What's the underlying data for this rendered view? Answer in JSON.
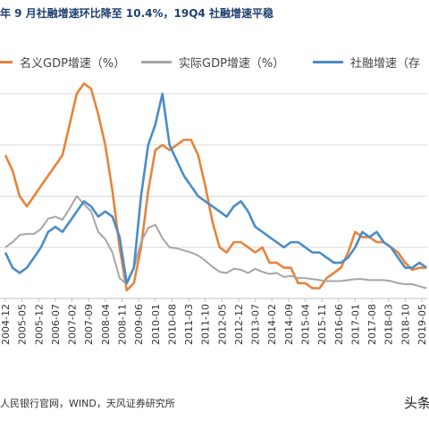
{
  "header": {
    "title": "年 9 月社融增速环比降至 10.4%，19Q4 社融增速平稳"
  },
  "footer": {
    "source": "人民银行官网，WIND，天风证券研究所",
    "watermark": "头条"
  },
  "colors": {
    "nominal_gdp": "#e8833a",
    "real_gdp": "#a6a6a6",
    "social_financing": "#4a8cc7"
  },
  "chart_data": {
    "type": "line",
    "title": "年 9 月社融增速环比降至 10.4%，19Q4 社融增速平稳",
    "xlabel": "",
    "ylabel": "",
    "x_ticks": [
      "2004-12",
      "2005-05",
      "2005-12",
      "2006-07",
      "2007-02",
      "2007-09",
      "2008-04",
      "2008-11",
      "2009-06",
      "2010-01",
      "2010-08",
      "2011-03",
      "2011-10",
      "2012-05",
      "2012-12",
      "2013-07",
      "2014-02",
      "2014-09",
      "2015-04",
      "2015-11",
      "2016-06",
      "2017-01",
      "2017-08",
      "2018-03",
      "2018-10",
      "2019-05"
    ],
    "ylim": [
      5,
      27
    ],
    "grid": true,
    "legend_position": "top",
    "series": [
      {
        "name": "名义GDP增速（%）",
        "points": [
          [
            "2004-12",
            19
          ],
          [
            "2005-03",
            17.5
          ],
          [
            "2005-06",
            15
          ],
          [
            "2005-09",
            14
          ],
          [
            "2005-12",
            15
          ],
          [
            "2006-03",
            16
          ],
          [
            "2006-06",
            17
          ],
          [
            "2006-09",
            18
          ],
          [
            "2006-12",
            19
          ],
          [
            "2007-03",
            22
          ],
          [
            "2007-06",
            25
          ],
          [
            "2007-09",
            26
          ],
          [
            "2007-12",
            25.5
          ],
          [
            "2008-03",
            23
          ],
          [
            "2008-06",
            20
          ],
          [
            "2008-09",
            15.5
          ],
          [
            "2008-12",
            10
          ],
          [
            "2009-03",
            5.8
          ],
          [
            "2009-06",
            6.5
          ],
          [
            "2009-09",
            10
          ],
          [
            "2009-12",
            15.5
          ],
          [
            "2010-03",
            19.5
          ],
          [
            "2010-06",
            20
          ],
          [
            "2010-09",
            19.5
          ],
          [
            "2010-12",
            20
          ],
          [
            "2011-03",
            20.5
          ],
          [
            "2011-06",
            20.5
          ],
          [
            "2011-09",
            19
          ],
          [
            "2011-12",
            16
          ],
          [
            "2012-03",
            12.5
          ],
          [
            "2012-06",
            10
          ],
          [
            "2012-09",
            9.5
          ],
          [
            "2012-12",
            10.5
          ],
          [
            "2013-03",
            10.5
          ],
          [
            "2013-06",
            10
          ],
          [
            "2013-09",
            9.5
          ],
          [
            "2013-12",
            10
          ],
          [
            "2014-03",
            8.5
          ],
          [
            "2014-06",
            8.5
          ],
          [
            "2014-09",
            8
          ],
          [
            "2014-12",
            8
          ],
          [
            "2015-03",
            6.5
          ],
          [
            "2015-06",
            6.5
          ],
          [
            "2015-09",
            6
          ],
          [
            "2015-12",
            6
          ],
          [
            "2016-03",
            7
          ],
          [
            "2016-06",
            7.5
          ],
          [
            "2016-09",
            8
          ],
          [
            "2016-12",
            9.5
          ],
          [
            "2017-03",
            11.5
          ],
          [
            "2017-06",
            11
          ],
          [
            "2017-09",
            11
          ],
          [
            "2017-12",
            10.5
          ],
          [
            "2018-03",
            10.5
          ],
          [
            "2018-06",
            10
          ],
          [
            "2018-09",
            9.5
          ],
          [
            "2018-12",
            8.5
          ],
          [
            "2019-03",
            7.8
          ],
          [
            "2019-06",
            8
          ],
          [
            "2019-09",
            8
          ]
        ]
      },
      {
        "name": "实际GDP增速（%）",
        "points": [
          [
            "2004-12",
            10
          ],
          [
            "2005-03",
            10.5
          ],
          [
            "2005-06",
            11.2
          ],
          [
            "2005-09",
            11.3
          ],
          [
            "2005-12",
            11.3
          ],
          [
            "2006-03",
            11.8
          ],
          [
            "2006-06",
            12.8
          ],
          [
            "2006-09",
            13
          ],
          [
            "2006-12",
            12.7
          ],
          [
            "2007-03",
            13.8
          ],
          [
            "2007-06",
            15
          ],
          [
            "2007-09",
            14.2
          ],
          [
            "2007-12",
            13.5
          ],
          [
            "2008-03",
            11.5
          ],
          [
            "2008-06",
            10.8
          ],
          [
            "2008-09",
            9.5
          ],
          [
            "2008-12",
            7
          ],
          [
            "2009-03",
            6.4
          ],
          [
            "2009-06",
            8
          ],
          [
            "2009-09",
            10.5
          ],
          [
            "2009-12",
            11.9
          ],
          [
            "2010-03",
            12.2
          ],
          [
            "2010-06",
            10.9
          ],
          [
            "2010-09",
            10
          ],
          [
            "2010-12",
            9.9
          ],
          [
            "2011-03",
            9.7
          ],
          [
            "2011-06",
            9.5
          ],
          [
            "2011-09",
            9.2
          ],
          [
            "2011-12",
            8.7
          ],
          [
            "2012-03",
            8.1
          ],
          [
            "2012-06",
            7.6
          ],
          [
            "2012-09",
            7.5
          ],
          [
            "2012-12",
            7.9
          ],
          [
            "2013-03",
            7.8
          ],
          [
            "2013-06",
            7.5
          ],
          [
            "2013-09",
            7.9
          ],
          [
            "2013-12",
            7.6
          ],
          [
            "2014-03",
            7.4
          ],
          [
            "2014-06",
            7.5
          ],
          [
            "2014-09",
            7.1
          ],
          [
            "2014-12",
            7.2
          ],
          [
            "2015-03",
            7
          ],
          [
            "2015-06",
            7
          ],
          [
            "2015-09",
            6.9
          ],
          [
            "2015-12",
            6.8
          ],
          [
            "2016-03",
            6.7
          ],
          [
            "2016-06",
            6.7
          ],
          [
            "2016-09",
            6.7
          ],
          [
            "2016-12",
            6.8
          ],
          [
            "2017-03",
            6.9
          ],
          [
            "2017-06",
            6.9
          ],
          [
            "2017-09",
            6.8
          ],
          [
            "2017-12",
            6.8
          ],
          [
            "2018-03",
            6.8
          ],
          [
            "2018-06",
            6.7
          ],
          [
            "2018-09",
            6.5
          ],
          [
            "2018-12",
            6.4
          ],
          [
            "2019-03",
            6.4
          ],
          [
            "2019-06",
            6.2
          ],
          [
            "2019-09",
            6
          ]
        ]
      },
      {
        "name": "社融增速（存",
        "points": [
          [
            "2004-12",
            9.5
          ],
          [
            "2005-03",
            8
          ],
          [
            "2005-06",
            7.5
          ],
          [
            "2005-09",
            8
          ],
          [
            "2005-12",
            9
          ],
          [
            "2006-03",
            10
          ],
          [
            "2006-06",
            11.5
          ],
          [
            "2006-09",
            12
          ],
          [
            "2006-12",
            11.5
          ],
          [
            "2007-03",
            12.5
          ],
          [
            "2007-06",
            13.5
          ],
          [
            "2007-09",
            14.5
          ],
          [
            "2007-12",
            14
          ],
          [
            "2008-03",
            13
          ],
          [
            "2008-06",
            13.5
          ],
          [
            "2008-09",
            13
          ],
          [
            "2008-12",
            11
          ],
          [
            "2009-03",
            6.5
          ],
          [
            "2009-06",
            8
          ],
          [
            "2009-09",
            15
          ],
          [
            "2009-12",
            20
          ],
          [
            "2010-03",
            22
          ],
          [
            "2010-06",
            25
          ],
          [
            "2010-09",
            20
          ],
          [
            "2010-12",
            18.5
          ],
          [
            "2011-03",
            17
          ],
          [
            "2011-06",
            16
          ],
          [
            "2011-09",
            15
          ],
          [
            "2011-12",
            14.5
          ],
          [
            "2012-03",
            14
          ],
          [
            "2012-06",
            13.5
          ],
          [
            "2012-09",
            13
          ],
          [
            "2012-12",
            14
          ],
          [
            "2013-03",
            14.5
          ],
          [
            "2013-06",
            13.5
          ],
          [
            "2013-09",
            12
          ],
          [
            "2013-12",
            11.5
          ],
          [
            "2014-03",
            11
          ],
          [
            "2014-06",
            10.5
          ],
          [
            "2014-09",
            10
          ],
          [
            "2014-12",
            10.5
          ],
          [
            "2015-03",
            10.5
          ],
          [
            "2015-06",
            10
          ],
          [
            "2015-09",
            9.5
          ],
          [
            "2015-12",
            9.5
          ],
          [
            "2016-03",
            9
          ],
          [
            "2016-06",
            8.5
          ],
          [
            "2016-09",
            8.5
          ],
          [
            "2016-12",
            9
          ],
          [
            "2017-03",
            10
          ],
          [
            "2017-06",
            11.5
          ],
          [
            "2017-09",
            11
          ],
          [
            "2017-12",
            11.5
          ],
          [
            "2018-03",
            10.5
          ],
          [
            "2018-06",
            10
          ],
          [
            "2018-09",
            9
          ],
          [
            "2018-12",
            8
          ],
          [
            "2019-03",
            8
          ],
          [
            "2019-06",
            8.5
          ],
          [
            "2019-09",
            8
          ]
        ]
      }
    ]
  }
}
